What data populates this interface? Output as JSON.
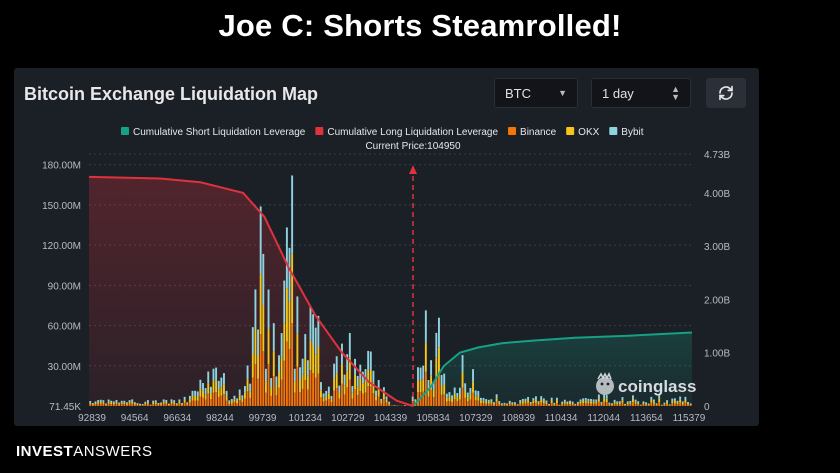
{
  "slide_title": "Joe C: Shorts Steamrolled!",
  "footer": {
    "brand_bold": "INVEST",
    "brand_light": "ANSWERS"
  },
  "panel": {
    "title": "Bitcoin Exchange Liquidation Map",
    "coin_select": "BTC",
    "range_select": "1 day",
    "watermark": "coinglass"
  },
  "colors": {
    "short_cum": "#16a085",
    "long_cum": "#e0323d",
    "binance": "#f6750a",
    "okx": "#f5c518",
    "bybit": "#8fd3df"
  },
  "chart_data": {
    "type": "bar",
    "title": "",
    "legend": [
      "Cumulative Short Liquidation Leverage",
      "Cumulative Long Liquidation Leverage",
      "Binance",
      "OKX",
      "Bybit"
    ],
    "current_price_label": "Current Price:104950",
    "current_price": 104950,
    "x_ticks": [
      "92839",
      "94564",
      "96634",
      "98244",
      "99739",
      "101234",
      "102729",
      "104339",
      "105834",
      "107329",
      "108939",
      "110434",
      "112044",
      "113654",
      "115379"
    ],
    "y_left_ticks": [
      "71.45K",
      "30.00M",
      "60.00M",
      "90.00M",
      "120.00M",
      "150.00M",
      "180.00M"
    ],
    "y_right_ticks": [
      "0",
      "1.00B",
      "2.00B",
      "3.00B",
      "4.00B",
      "4.73B"
    ],
    "ylim_left_millions": [
      0,
      188
    ],
    "ylim_right_billions": [
      0,
      4.73
    ],
    "cumulative_long_billions": {
      "x": [
        92839,
        95500,
        97000,
        98600,
        99400,
        100300,
        101300,
        102300,
        103300,
        104339,
        104950
      ],
      "y": [
        4.3,
        4.27,
        4.2,
        4.0,
        3.55,
        2.6,
        1.7,
        1.0,
        0.45,
        0.1,
        0.0
      ]
    },
    "cumulative_short_billions": {
      "x": [
        104950,
        105600,
        106100,
        106700,
        107400,
        108300,
        109500,
        111000,
        113000,
        115379
      ],
      "y": [
        0.0,
        0.35,
        0.75,
        1.0,
        1.1,
        1.18,
        1.23,
        1.28,
        1.32,
        1.38
      ]
    }
  }
}
